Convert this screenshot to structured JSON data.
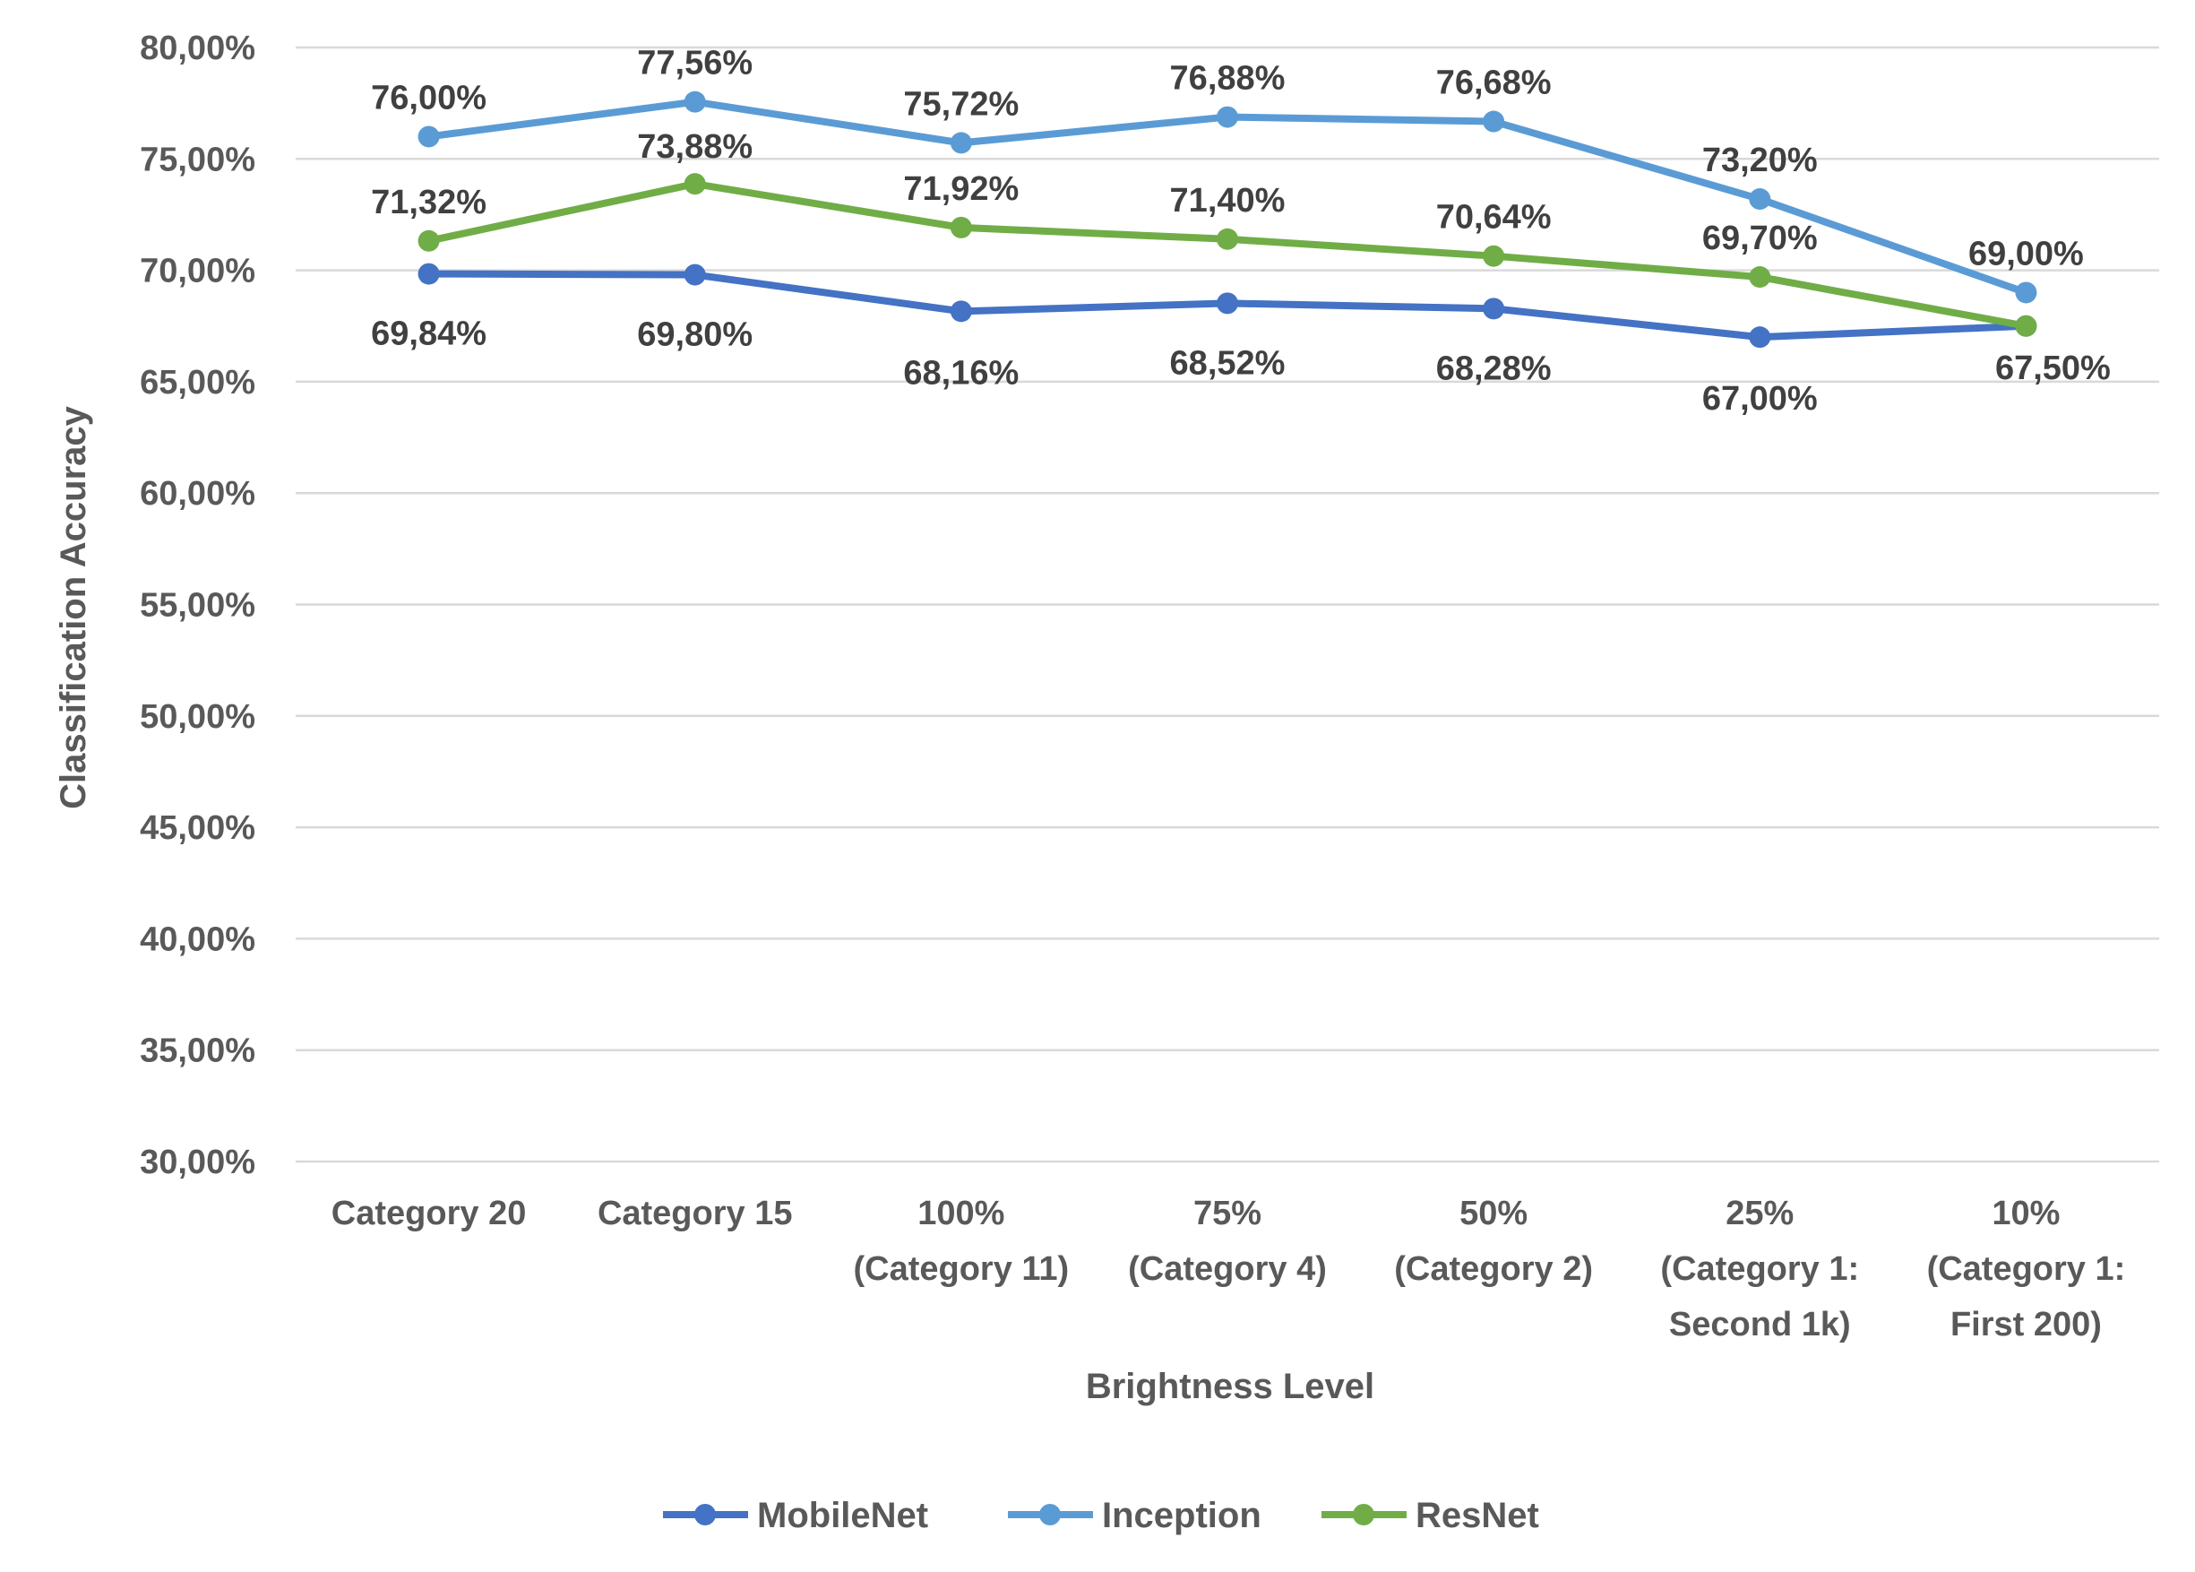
{
  "chart_data": {
    "type": "line",
    "title": "",
    "xlabel": "Brightness Level",
    "ylabel": "Classification Accuracy",
    "ylim": [
      30,
      80
    ],
    "yticks": [
      30,
      35,
      40,
      45,
      50,
      55,
      60,
      65,
      70,
      75,
      80
    ],
    "ytick_labels": [
      "30,00%",
      "35,00%",
      "40,00%",
      "45,00%",
      "50,00%",
      "55,00%",
      "60,00%",
      "65,00%",
      "70,00%",
      "75,00%",
      "80,00%"
    ],
    "categories": [
      [
        "Category 20"
      ],
      [
        "Category 15"
      ],
      [
        "100%",
        "(Category 11)"
      ],
      [
        "75%",
        "(Category 4)"
      ],
      [
        "50%",
        "(Category 2)"
      ],
      [
        "25%",
        "(Category 1:",
        "Second 1k)"
      ],
      [
        "10%",
        "(Category 1:",
        "First 200)"
      ]
    ],
    "grid": true,
    "legend": "bottom",
    "series": [
      {
        "name": "MobileNet",
        "color": "#4472c4",
        "values": [
          69.84,
          69.8,
          68.16,
          68.52,
          68.28,
          67.0,
          67.5
        ],
        "labels": [
          "69,84%",
          "69,80%",
          "68,16%",
          "68,52%",
          "68,28%",
          "67,00%",
          ""
        ],
        "label_position": "below"
      },
      {
        "name": "Inception",
        "color": "#5b9bd5",
        "values": [
          76.0,
          77.56,
          75.72,
          76.88,
          76.68,
          73.2,
          69.0
        ],
        "labels": [
          "76,00%",
          "77,56%",
          "75,72%",
          "76,88%",
          "76,68%",
          "73,20%",
          "69,00%"
        ],
        "label_position": "above"
      },
      {
        "name": "ResNet",
        "color": "#70ad47",
        "values": [
          71.32,
          73.88,
          71.92,
          71.4,
          70.64,
          69.7,
          67.5
        ],
        "labels": [
          "71,32%",
          "73,88%",
          "71,92%",
          "71,40%",
          "70,64%",
          "69,70%",
          "67,50%"
        ],
        "label_position": "mixed"
      }
    ]
  }
}
